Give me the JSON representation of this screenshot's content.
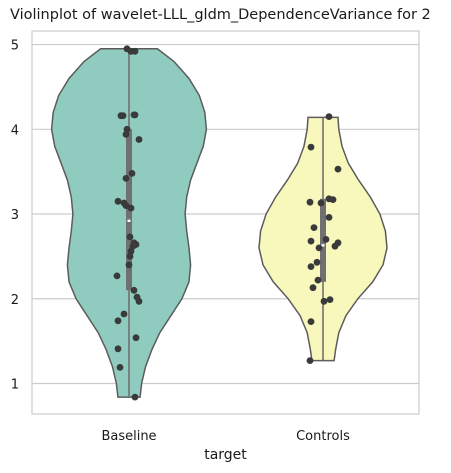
{
  "chart_data": {
    "type": "violin",
    "title": "Violinplot of wavelet-LLL_gldm_DependenceVariance for 2",
    "xlabel": "target",
    "ylabel": "",
    "categories": [
      "Baseline",
      "Controls"
    ],
    "yticks": [
      1,
      2,
      3,
      4,
      5
    ],
    "ylim": [
      0.64,
      5.16
    ],
    "grid": "horizontal",
    "colors": {
      "Baseline": "#8fcbbf",
      "Controls": "#f8f7bc"
    },
    "series": [
      {
        "category": "Baseline",
        "min": 0.84,
        "q1": 2.1,
        "median": 2.92,
        "q3": 4.0,
        "max": 4.95,
        "density_profile": [
          [
            0.84,
            0.14
          ],
          [
            1.0,
            0.16
          ],
          [
            1.2,
            0.21
          ],
          [
            1.4,
            0.29
          ],
          [
            1.6,
            0.39
          ],
          [
            1.8,
            0.53
          ],
          [
            2.0,
            0.67
          ],
          [
            2.2,
            0.76
          ],
          [
            2.4,
            0.78
          ],
          [
            2.6,
            0.76
          ],
          [
            2.8,
            0.73
          ],
          [
            3.0,
            0.71
          ],
          [
            3.2,
            0.73
          ],
          [
            3.4,
            0.78
          ],
          [
            3.6,
            0.86
          ],
          [
            3.8,
            0.94
          ],
          [
            4.0,
            0.98
          ],
          [
            4.2,
            0.96
          ],
          [
            4.4,
            0.89
          ],
          [
            4.6,
            0.76
          ],
          [
            4.8,
            0.57
          ],
          [
            4.95,
            0.36
          ]
        ],
        "points": [
          [
            -0.02,
            4.95
          ],
          [
            0.02,
            4.92
          ],
          [
            0.06,
            4.92
          ],
          [
            -0.08,
            4.16
          ],
          [
            -0.06,
            4.16
          ],
          [
            0.05,
            4.17
          ],
          [
            0.06,
            4.17
          ],
          [
            -0.02,
            4.0
          ],
          [
            -0.03,
            3.94
          ],
          [
            0.1,
            3.88
          ],
          [
            0.03,
            3.48
          ],
          [
            -0.03,
            3.42
          ],
          [
            -0.11,
            3.15
          ],
          [
            -0.05,
            3.13
          ],
          [
            -0.03,
            3.1
          ],
          [
            0.02,
            3.07
          ],
          [
            0.01,
            2.73
          ],
          [
            0.05,
            2.66
          ],
          [
            0.04,
            2.62
          ],
          [
            0.07,
            2.64
          ],
          [
            0.02,
            2.56
          ],
          [
            0.01,
            2.5
          ],
          [
            0.0,
            2.4
          ],
          [
            -0.12,
            2.27
          ],
          [
            0.05,
            2.1
          ],
          [
            0.08,
            2.02
          ],
          [
            0.1,
            1.97
          ],
          [
            -0.05,
            1.82
          ],
          [
            -0.11,
            1.74
          ],
          [
            0.07,
            1.54
          ],
          [
            -0.11,
            1.41
          ],
          [
            -0.09,
            1.19
          ],
          [
            0.06,
            0.84
          ]
        ]
      },
      {
        "category": "Controls",
        "min": 1.27,
        "q1": 2.2,
        "median": 2.63,
        "q3": 3.18,
        "max": 4.14,
        "density_profile": [
          [
            1.27,
            0.14
          ],
          [
            1.4,
            0.16
          ],
          [
            1.6,
            0.2
          ],
          [
            1.8,
            0.29
          ],
          [
            2.0,
            0.44
          ],
          [
            2.2,
            0.63
          ],
          [
            2.4,
            0.76
          ],
          [
            2.6,
            0.81
          ],
          [
            2.8,
            0.79
          ],
          [
            3.0,
            0.72
          ],
          [
            3.2,
            0.6
          ],
          [
            3.4,
            0.45
          ],
          [
            3.6,
            0.32
          ],
          [
            3.8,
            0.24
          ],
          [
            4.0,
            0.2
          ],
          [
            4.14,
            0.19
          ]
        ],
        "points": [
          [
            0.06,
            4.15
          ],
          [
            -0.12,
            3.79
          ],
          [
            0.15,
            3.53
          ],
          [
            0.06,
            3.18
          ],
          [
            0.1,
            3.17
          ],
          [
            -0.02,
            3.13
          ],
          [
            -0.13,
            3.14
          ],
          [
            0.06,
            2.96
          ],
          [
            -0.09,
            2.84
          ],
          [
            -0.12,
            2.68
          ],
          [
            0.03,
            2.7
          ],
          [
            -0.04,
            2.6
          ],
          [
            0.12,
            2.62
          ],
          [
            0.15,
            2.66
          ],
          [
            -0.06,
            2.43
          ],
          [
            -0.12,
            2.38
          ],
          [
            -0.05,
            2.22
          ],
          [
            -0.1,
            2.13
          ],
          [
            0.07,
            1.99
          ],
          [
            0.01,
            1.97
          ],
          [
            -0.12,
            1.73
          ],
          [
            -0.13,
            1.27
          ]
        ]
      }
    ]
  }
}
